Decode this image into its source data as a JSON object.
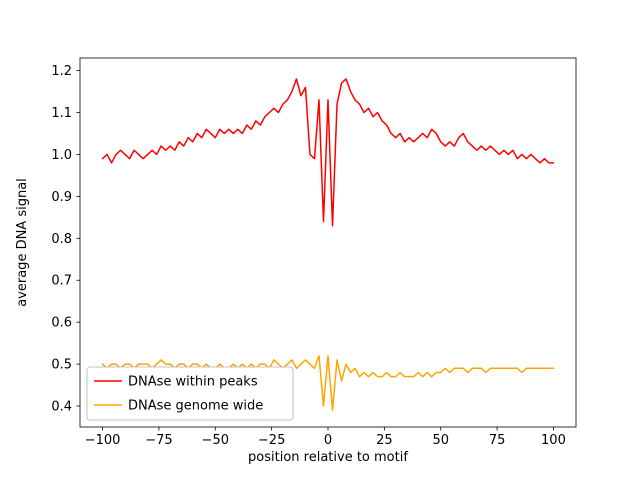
{
  "figure": {
    "background": "#ffffff"
  },
  "chart_data": {
    "type": "line",
    "title": "",
    "xlabel": "position relative to motif",
    "ylabel": "average DNA signal",
    "grid": false,
    "legend_position": "lower left",
    "xlim": [
      -110,
      110
    ],
    "ylim": [
      0.35,
      1.23
    ],
    "xtick_values": [
      -100,
      -75,
      -50,
      -25,
      0,
      25,
      50,
      75,
      100
    ],
    "xtick_labels": [
      "−100",
      "−75",
      "−50",
      "−25",
      "0",
      "25",
      "50",
      "75",
      "100"
    ],
    "ytick_values": [
      0.4,
      0.5,
      0.6,
      0.7,
      0.8,
      0.9,
      1.0,
      1.1,
      1.2
    ],
    "ytick_labels": [
      "0.4",
      "0.5",
      "0.6",
      "0.7",
      "0.8",
      "0.9",
      "1.0",
      "1.1",
      "1.2"
    ],
    "x": [
      -100,
      -98,
      -96,
      -94,
      -92,
      -90,
      -88,
      -86,
      -84,
      -82,
      -80,
      -78,
      -76,
      -74,
      -72,
      -70,
      -68,
      -66,
      -64,
      -62,
      -60,
      -58,
      -56,
      -54,
      -52,
      -50,
      -48,
      -46,
      -44,
      -42,
      -40,
      -38,
      -36,
      -34,
      -32,
      -30,
      -28,
      -26,
      -24,
      -22,
      -20,
      -18,
      -16,
      -14,
      -12,
      -10,
      -8,
      -6,
      -4,
      -2,
      0,
      2,
      4,
      6,
      8,
      10,
      12,
      14,
      16,
      18,
      20,
      22,
      24,
      26,
      28,
      30,
      32,
      34,
      36,
      38,
      40,
      42,
      44,
      46,
      48,
      50,
      52,
      54,
      56,
      58,
      60,
      62,
      64,
      66,
      68,
      70,
      72,
      74,
      76,
      78,
      80,
      82,
      84,
      86,
      88,
      90,
      92,
      94,
      96,
      98,
      100
    ],
    "series": [
      {
        "name": "DNAse within peaks",
        "color": "#ff0000",
        "values": [
          0.99,
          1.0,
          0.98,
          1.0,
          1.01,
          1.0,
          0.99,
          1.01,
          1.0,
          0.99,
          1.0,
          1.01,
          1.0,
          1.02,
          1.01,
          1.02,
          1.01,
          1.03,
          1.02,
          1.04,
          1.03,
          1.05,
          1.04,
          1.06,
          1.05,
          1.04,
          1.06,
          1.05,
          1.06,
          1.05,
          1.06,
          1.05,
          1.07,
          1.06,
          1.08,
          1.07,
          1.09,
          1.1,
          1.11,
          1.1,
          1.12,
          1.13,
          1.15,
          1.18,
          1.14,
          1.16,
          1.0,
          0.99,
          1.13,
          0.84,
          1.13,
          0.83,
          1.12,
          1.17,
          1.18,
          1.15,
          1.13,
          1.12,
          1.1,
          1.11,
          1.09,
          1.1,
          1.08,
          1.07,
          1.05,
          1.04,
          1.05,
          1.03,
          1.04,
          1.03,
          1.04,
          1.05,
          1.04,
          1.06,
          1.05,
          1.03,
          1.02,
          1.03,
          1.02,
          1.04,
          1.05,
          1.03,
          1.02,
          1.01,
          1.02,
          1.01,
          1.02,
          1.01,
          1.0,
          1.01,
          1.0,
          1.01,
          0.99,
          1.0,
          0.99,
          1.0,
          0.99,
          0.98,
          0.99,
          0.98,
          0.98
        ]
      },
      {
        "name": "DNAse genome wide",
        "color": "#ffa500",
        "values": [
          0.5,
          0.49,
          0.5,
          0.5,
          0.49,
          0.5,
          0.5,
          0.49,
          0.5,
          0.5,
          0.5,
          0.49,
          0.5,
          0.51,
          0.5,
          0.5,
          0.49,
          0.5,
          0.5,
          0.49,
          0.5,
          0.5,
          0.49,
          0.5,
          0.49,
          0.49,
          0.5,
          0.49,
          0.49,
          0.5,
          0.49,
          0.5,
          0.49,
          0.5,
          0.49,
          0.5,
          0.5,
          0.49,
          0.51,
          0.5,
          0.49,
          0.5,
          0.51,
          0.49,
          0.5,
          0.51,
          0.5,
          0.49,
          0.52,
          0.4,
          0.52,
          0.39,
          0.51,
          0.46,
          0.5,
          0.48,
          0.49,
          0.47,
          0.48,
          0.47,
          0.48,
          0.47,
          0.47,
          0.48,
          0.47,
          0.47,
          0.48,
          0.47,
          0.47,
          0.47,
          0.48,
          0.47,
          0.48,
          0.47,
          0.48,
          0.48,
          0.49,
          0.48,
          0.49,
          0.49,
          0.49,
          0.48,
          0.49,
          0.49,
          0.49,
          0.48,
          0.49,
          0.49,
          0.49,
          0.49,
          0.49,
          0.49,
          0.49,
          0.48,
          0.49,
          0.49,
          0.49,
          0.49,
          0.49,
          0.49,
          0.49
        ]
      }
    ]
  }
}
